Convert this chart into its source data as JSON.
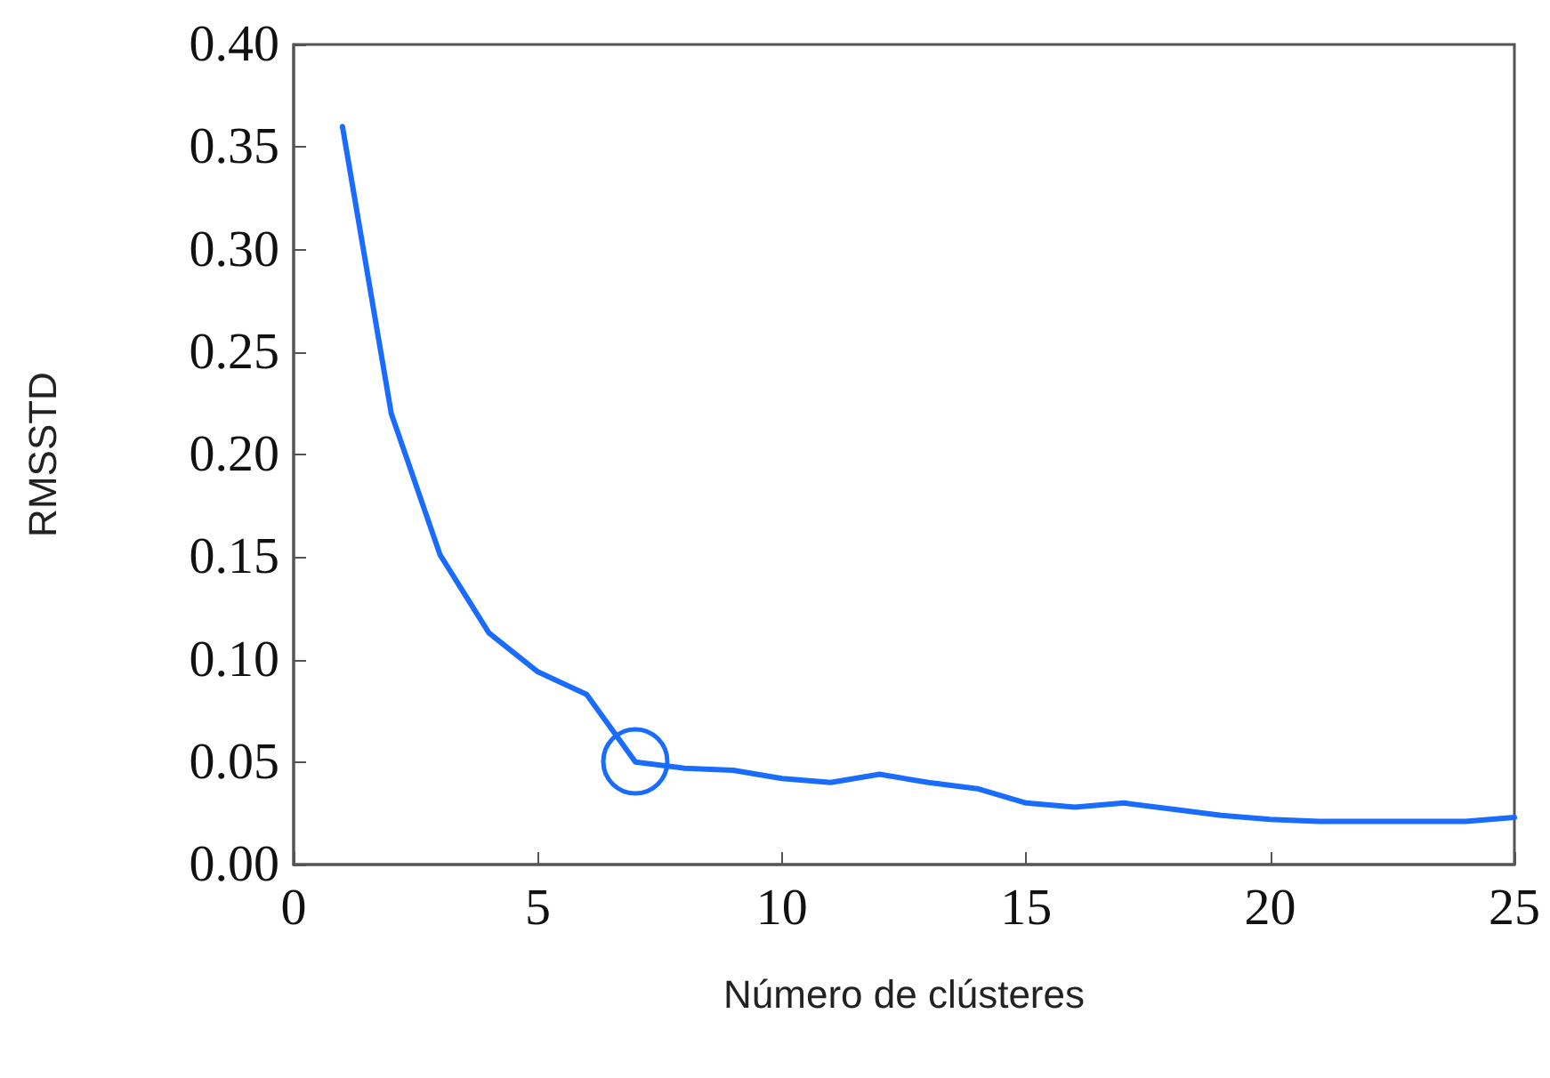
{
  "chart_data": {
    "type": "line",
    "xlabel": "Número de clústeres",
    "ylabel": "RMSSTD",
    "x": [
      1,
      2,
      3,
      4,
      5,
      6,
      7,
      8,
      9,
      10,
      11,
      12,
      13,
      14,
      15,
      16,
      17,
      18,
      19,
      20,
      21,
      22,
      23,
      24,
      25
    ],
    "series": [
      {
        "color": "#1a6cff",
        "values": [
          0.36,
          0.22,
          0.151,
          0.113,
          0.094,
          0.083,
          0.05,
          0.047,
          0.046,
          0.042,
          0.04,
          0.044,
          0.04,
          0.037,
          0.03,
          0.028,
          0.03,
          0.027,
          0.024,
          0.022,
          0.021,
          0.021,
          0.021,
          0.021,
          0.023
        ]
      }
    ],
    "xlim": [
      0,
      25
    ],
    "xticks": [
      0,
      5,
      10,
      15,
      20,
      25
    ],
    "ylim": [
      0,
      0.4
    ],
    "yticks": [
      {
        "value": 0,
        "label": "0.00"
      },
      {
        "value": 0.05,
        "label": "0.05"
      },
      {
        "value": 0.1,
        "label": "0.10"
      },
      {
        "value": 0.15,
        "label": "0.15"
      },
      {
        "value": 0.2,
        "label": "0.20"
      },
      {
        "value": 0.25,
        "label": "0.25"
      },
      {
        "value": 0.3,
        "label": "0.30"
      },
      {
        "value": 0.35,
        "label": "0.35"
      },
      {
        "value": 0.4,
        "label": "0.40"
      }
    ],
    "grid": false,
    "marker": "none",
    "line_style": "solid"
  }
}
